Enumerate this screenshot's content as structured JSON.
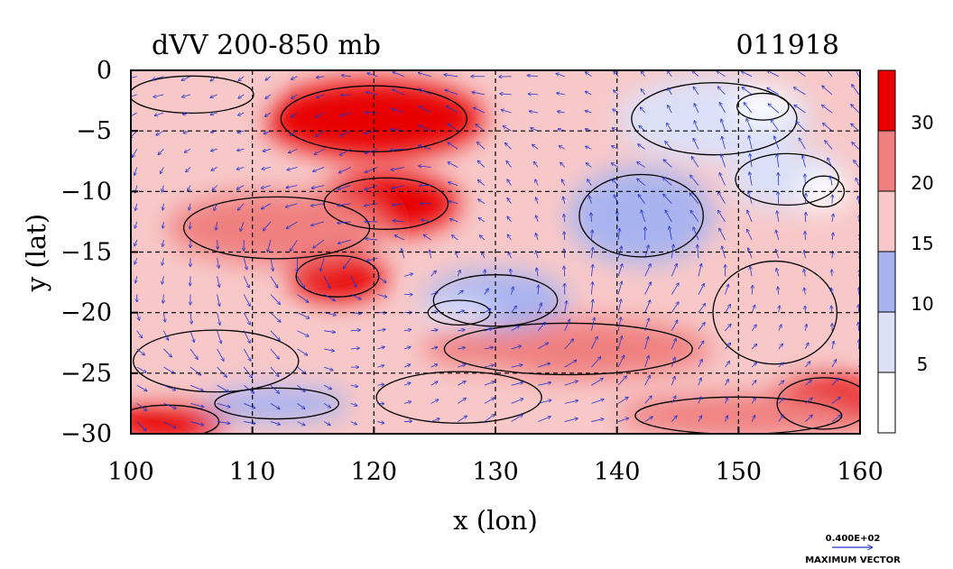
{
  "chart_data": {
    "type": "heatmap",
    "title": "dVV 200-850 mb",
    "date_label": "011918",
    "xlabel": "x (lon)",
    "ylabel": "y (lat)",
    "xlim": [
      100,
      160
    ],
    "ylim": [
      -30,
      0
    ],
    "x_ticks": [
      "100",
      "110",
      "120",
      "130",
      "140",
      "150",
      "160"
    ],
    "y_ticks": [
      "0",
      "−5",
      "−10",
      "−15",
      "−20",
      "−25",
      "−30"
    ],
    "grid": true,
    "legend": {
      "placement": "right",
      "levels": [
        "30",
        "20",
        "15",
        "10",
        "5"
      ],
      "colors": [
        "#e80000",
        "#f08080",
        "#f8c8c8",
        "#a8b4f0",
        "#dce0f8",
        "#ffffff"
      ]
    },
    "vector_key": {
      "value": "0.400E+02",
      "label": "MAXIMUM VECTOR"
    },
    "field_blobs": [
      {
        "cx": 120,
        "cy": -4,
        "rx": 9,
        "ry": 3.2,
        "level": 0
      },
      {
        "cx": 121,
        "cy": -11,
        "rx": 6,
        "ry": 2.5,
        "level": 0
      },
      {
        "cx": 117,
        "cy": -17,
        "rx": 4,
        "ry": 2,
        "level": 0
      },
      {
        "cx": 103,
        "cy": -29,
        "rx": 5,
        "ry": 1.6,
        "level": 0
      },
      {
        "cx": 157,
        "cy": -27.5,
        "rx": 4.5,
        "ry": 2.5,
        "level": 0
      },
      {
        "cx": 112,
        "cy": -13,
        "rx": 9,
        "ry": 3,
        "level": 1
      },
      {
        "cx": 136,
        "cy": -23,
        "rx": 12,
        "ry": 2.5,
        "level": 1
      },
      {
        "cx": 150,
        "cy": -28.5,
        "rx": 10,
        "ry": 1.8,
        "level": 1
      },
      {
        "cx": 105,
        "cy": -2,
        "rx": 6,
        "ry": 1.8,
        "level": 2
      },
      {
        "cx": 107,
        "cy": -24,
        "rx": 8,
        "ry": 3,
        "level": 2
      },
      {
        "cx": 127,
        "cy": -27,
        "rx": 8,
        "ry": 2.5,
        "level": 2
      },
      {
        "cx": 153,
        "cy": -20,
        "rx": 6,
        "ry": 5,
        "level": 2
      },
      {
        "cx": 142,
        "cy": -12,
        "rx": 6,
        "ry": 4,
        "level": 3
      },
      {
        "cx": 130,
        "cy": -19,
        "rx": 6,
        "ry": 2.5,
        "level": 3
      },
      {
        "cx": 112,
        "cy": -27.5,
        "rx": 6,
        "ry": 1.5,
        "level": 3
      },
      {
        "cx": 148,
        "cy": -4,
        "rx": 8,
        "ry": 3.5,
        "level": 4
      },
      {
        "cx": 154,
        "cy": -9,
        "rx": 5,
        "ry": 2.5,
        "level": 4
      },
      {
        "cx": 127,
        "cy": -20,
        "rx": 3,
        "ry": 1.2,
        "level": 4
      },
      {
        "cx": 152,
        "cy": -3,
        "rx": 2.5,
        "ry": 1.3,
        "level": 5
      },
      {
        "cx": 157,
        "cy": -10,
        "rx": 2,
        "ry": 1.5,
        "level": 5
      }
    ]
  }
}
